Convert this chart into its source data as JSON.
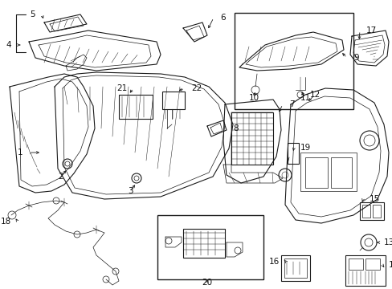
{
  "fig_width": 4.89,
  "fig_height": 3.6,
  "dpi": 100,
  "bg_color": "#ffffff",
  "image_b64": ""
}
